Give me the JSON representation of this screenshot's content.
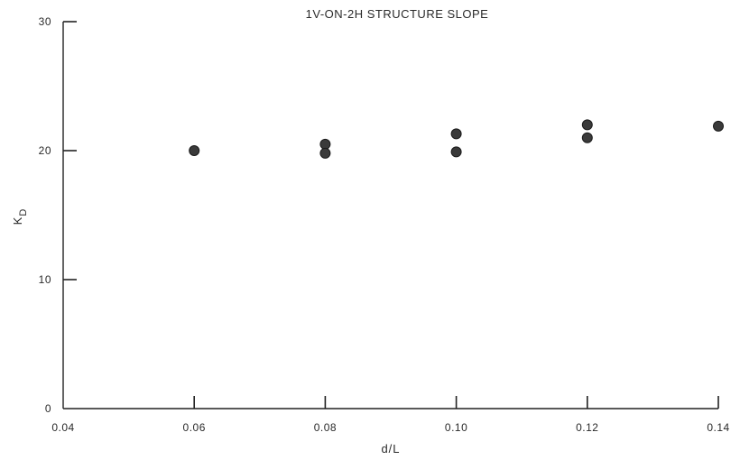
{
  "chart_data": {
    "type": "scatter",
    "title": "1V-ON-2H STRUCTURE SLOPE",
    "xlabel": "d/L",
    "ylabel_main": "K",
    "ylabel_sub": "D",
    "xlim": [
      0.04,
      0.14
    ],
    "ylim": [
      0,
      30
    ],
    "x_ticks": [
      "0.04",
      "0.06",
      "0.08",
      "0.10",
      "0.12",
      "0.14"
    ],
    "y_ticks": [
      "0",
      "10",
      "20",
      "30"
    ],
    "grid": false,
    "series": [
      {
        "points": [
          {
            "x": 0.06,
            "y": 20.0
          },
          {
            "x": 0.08,
            "y": 20.5
          },
          {
            "x": 0.08,
            "y": 19.8
          },
          {
            "x": 0.1,
            "y": 21.3
          },
          {
            "x": 0.1,
            "y": 19.9
          },
          {
            "x": 0.12,
            "y": 22.0
          },
          {
            "x": 0.12,
            "y": 21.0
          },
          {
            "x": 0.14,
            "y": 21.9
          }
        ]
      }
    ]
  }
}
